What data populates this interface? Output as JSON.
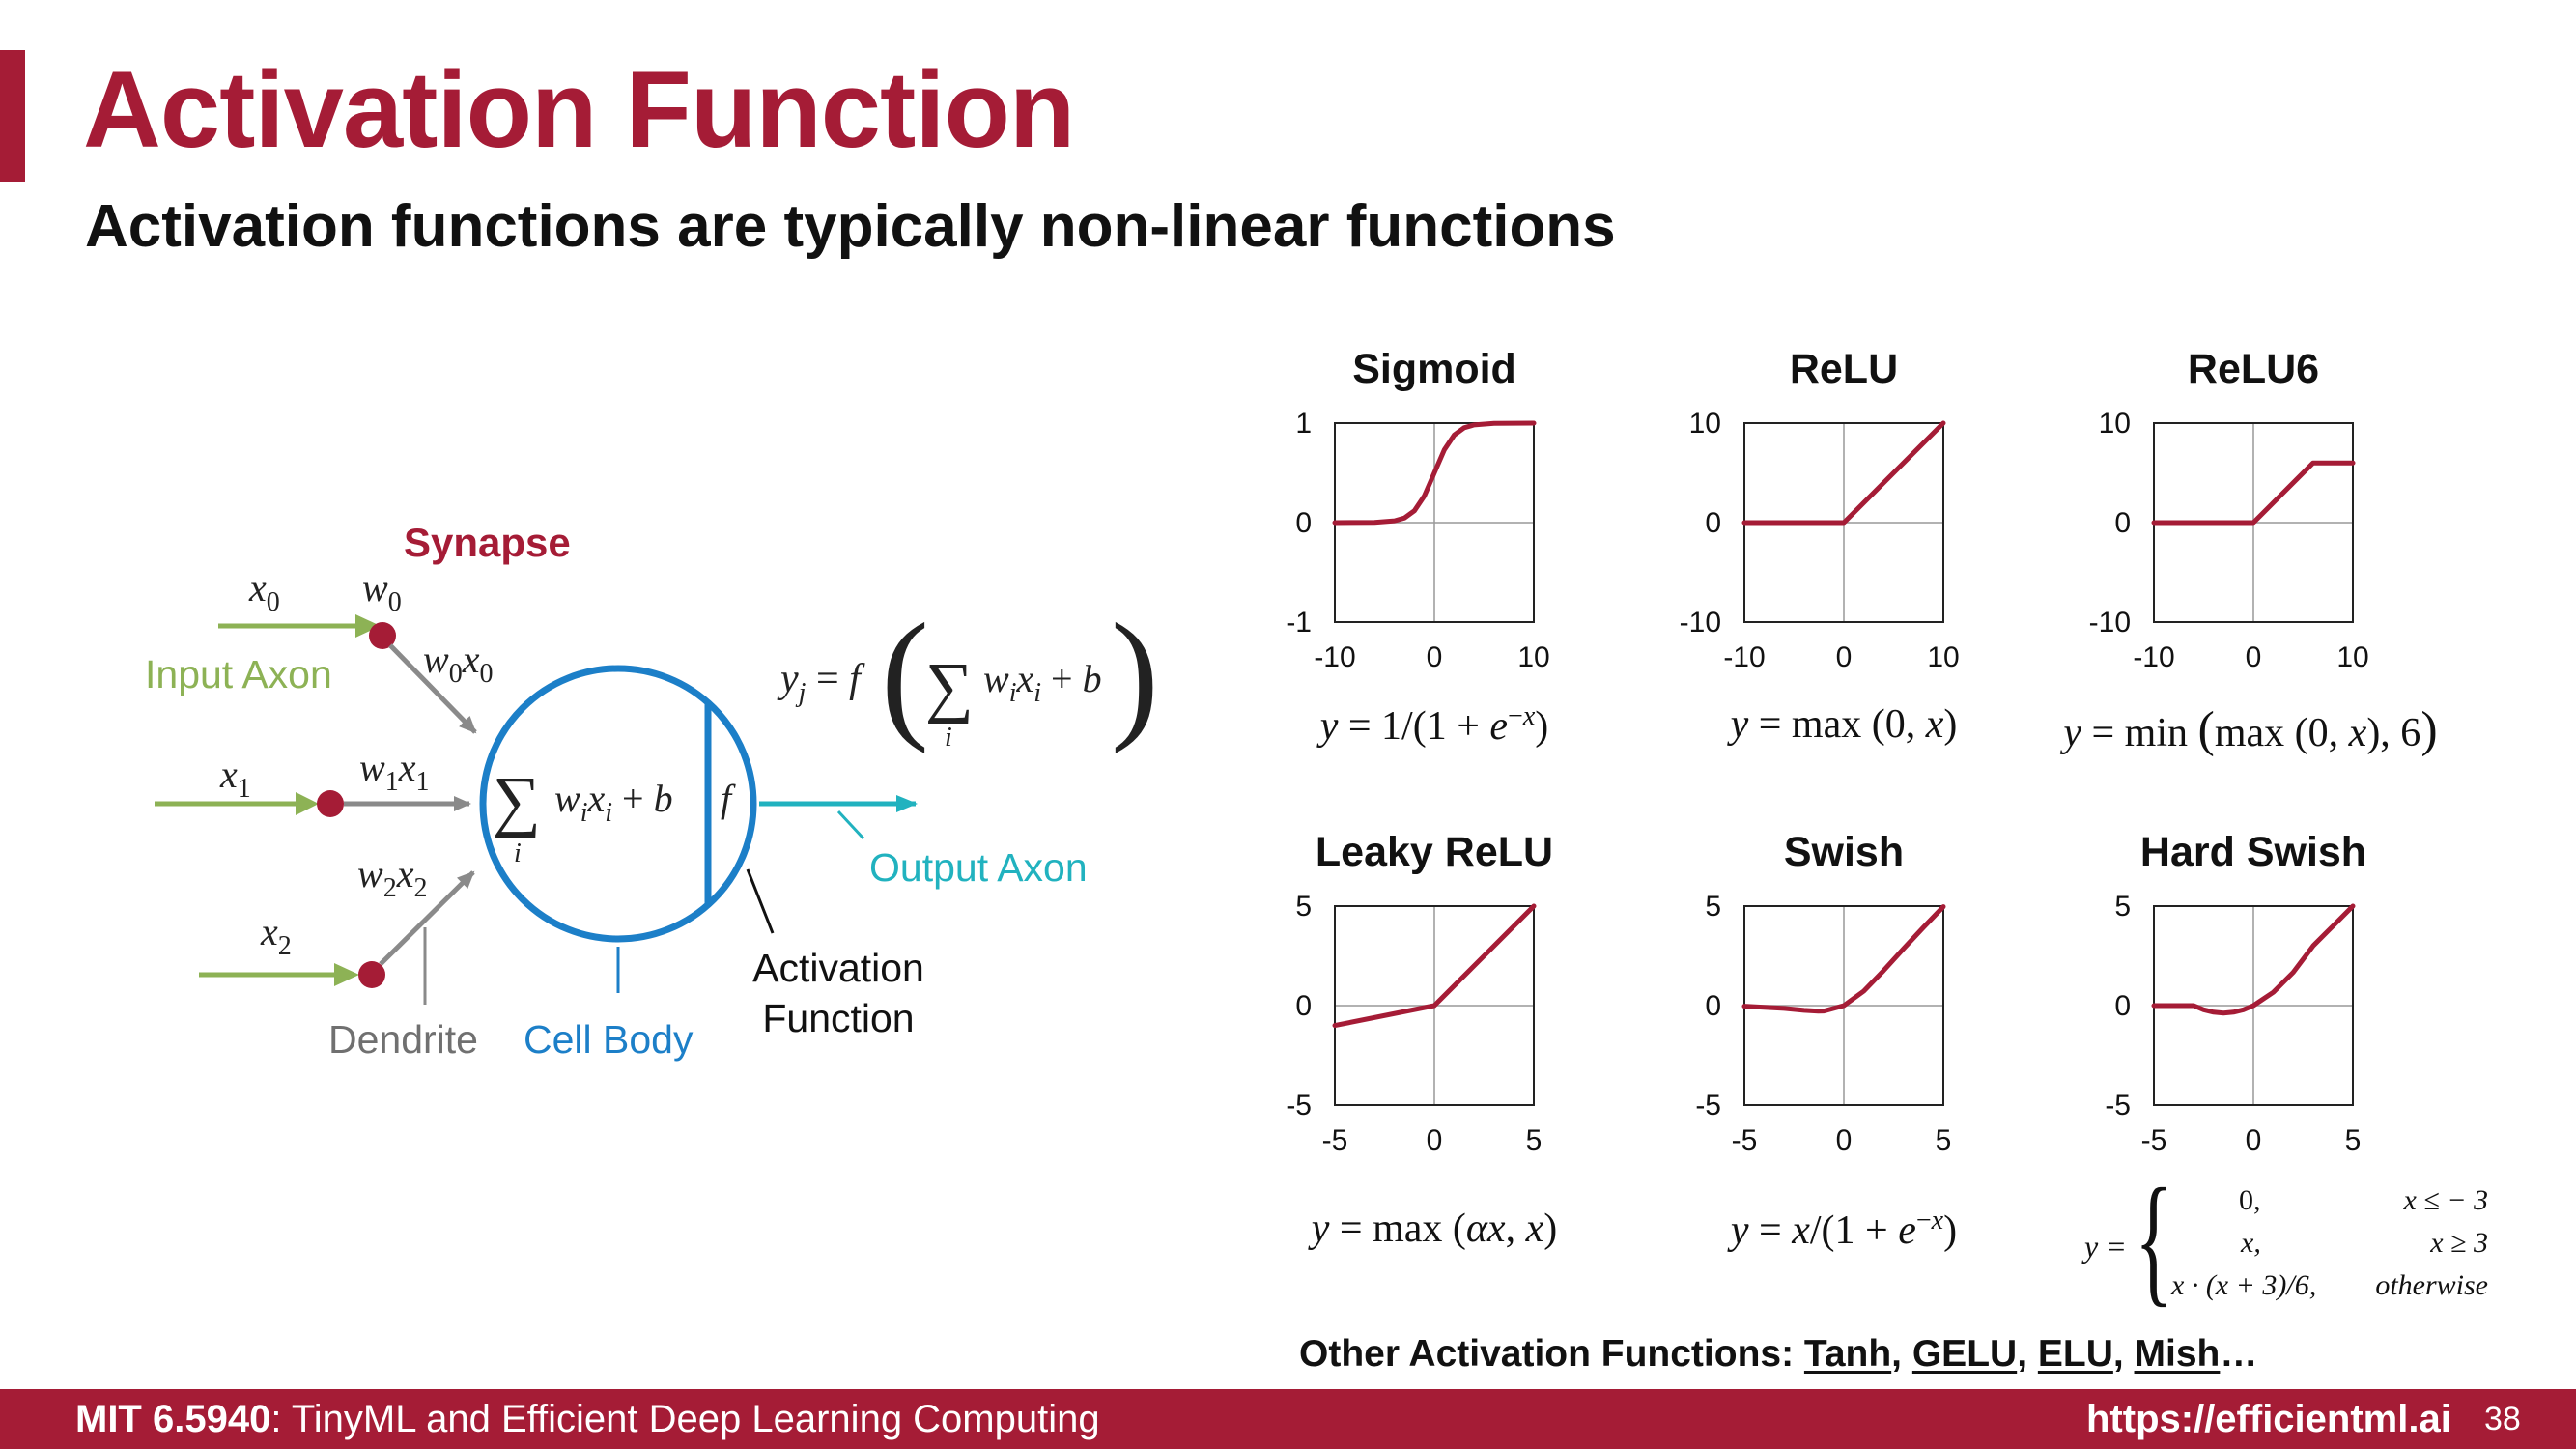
{
  "slide": {
    "title": "Activation Function",
    "subtitle": "Activation functions are typically non-linear functions"
  },
  "neuron": {
    "synapse": "Synapse",
    "input_axon": "Input Axon",
    "output_axon": "Output Axon",
    "dendrite": "Dendrite",
    "cell_body": "Cell Body",
    "activation_line1": "Activation",
    "activation_line2": "Function",
    "f_label": "f",
    "colors": {
      "crimson": "#a51c36",
      "green": "#8db255",
      "blue": "#1c7fc8",
      "teal": "#21b2bf",
      "gray": "#8a8a8a"
    }
  },
  "chart_data": [
    {
      "type": "line",
      "title": "Sigmoid",
      "function": "sigmoid",
      "xlim": [
        -10,
        10
      ],
      "ylim": [
        -1,
        1
      ],
      "xticks": [
        "-10",
        "0",
        "10"
      ],
      "yticks": [
        "-1",
        "0",
        "1"
      ],
      "x": [
        -10,
        -6,
        -4,
        -3,
        -2,
        -1,
        0,
        1,
        2,
        3,
        4,
        6,
        10
      ],
      "y": [
        0.0,
        0.002,
        0.018,
        0.047,
        0.119,
        0.269,
        0.5,
        0.731,
        0.881,
        0.953,
        0.982,
        0.998,
        1.0
      ],
      "formula": "y = 1/(1 + e−x)"
    },
    {
      "type": "line",
      "title": "ReLU",
      "function": "relu",
      "xlim": [
        -10,
        10
      ],
      "ylim": [
        -10,
        10
      ],
      "xticks": [
        "-10",
        "0",
        "10"
      ],
      "yticks": [
        "-10",
        "0",
        "10"
      ],
      "x": [
        -10,
        0,
        10
      ],
      "y": [
        0,
        0,
        10
      ],
      "formula": "y = max (0, x)"
    },
    {
      "type": "line",
      "title": "ReLU6",
      "function": "relu6",
      "xlim": [
        -10,
        10
      ],
      "ylim": [
        -10,
        10
      ],
      "xticks": [
        "-10",
        "0",
        "10"
      ],
      "yticks": [
        "-10",
        "0",
        "10"
      ],
      "x": [
        -10,
        0,
        6,
        10
      ],
      "y": [
        0,
        0,
        6,
        6
      ],
      "formula": "y = min (max (0, x), 6)"
    },
    {
      "type": "line",
      "title": "Leaky ReLU",
      "function": "leaky_relu",
      "xlim": [
        -5,
        5
      ],
      "ylim": [
        -5,
        5
      ],
      "xticks": [
        "-5",
        "0",
        "5"
      ],
      "yticks": [
        "-5",
        "0",
        "5"
      ],
      "x": [
        -5,
        0,
        5
      ],
      "y": [
        -1.0,
        0,
        5
      ],
      "formula": "y = max (αx, x)"
    },
    {
      "type": "line",
      "title": "Swish",
      "function": "swish",
      "xlim": [
        -5,
        5
      ],
      "ylim": [
        -5,
        5
      ],
      "xticks": [
        "-5",
        "0",
        "5"
      ],
      "yticks": [
        "-5",
        "0",
        "5"
      ],
      "x": [
        -5,
        -3,
        -2,
        -1.28,
        -1,
        0,
        1,
        2,
        3,
        4,
        5
      ],
      "y": [
        -0.03,
        -0.14,
        -0.24,
        -0.28,
        -0.27,
        0,
        0.73,
        1.76,
        2.86,
        3.93,
        4.97
      ],
      "formula": "y = x/(1 + e−x)"
    },
    {
      "type": "line",
      "title": "Hard Swish",
      "function": "hard_swish",
      "xlim": [
        -5,
        5
      ],
      "ylim": [
        -5,
        5
      ],
      "xticks": [
        "-5",
        "0",
        "5"
      ],
      "yticks": [
        "-5",
        "0",
        "5"
      ],
      "x": [
        -5,
        -3,
        -2.5,
        -2,
        -1.5,
        -1,
        -0.5,
        0,
        1,
        2,
        3,
        4,
        5
      ],
      "y": [
        0,
        0,
        -0.21,
        -0.33,
        -0.38,
        -0.33,
        -0.21,
        0,
        0.67,
        1.67,
        3,
        4,
        5
      ],
      "formula": "piecewise"
    }
  ],
  "hard_swish_formula": {
    "lhs": "y =",
    "rows": [
      {
        "value": "0,",
        "condition": "x ≤ − 3"
      },
      {
        "value": "x,",
        "condition": "x ≥ 3"
      },
      {
        "value": "x · (x + 3)/6,",
        "condition": "otherwise"
      }
    ]
  },
  "other_functions": {
    "prefix": "Other Activation Functions: ",
    "items": [
      "Tanh",
      "GELU",
      "ELU",
      "Mish"
    ],
    "suffix": "…"
  },
  "footer": {
    "course_code": "MIT 6.5940",
    "course_name": ": TinyML and Efficient Deep Learning Computing",
    "url": "https://efficientml.ai",
    "page": "38"
  }
}
